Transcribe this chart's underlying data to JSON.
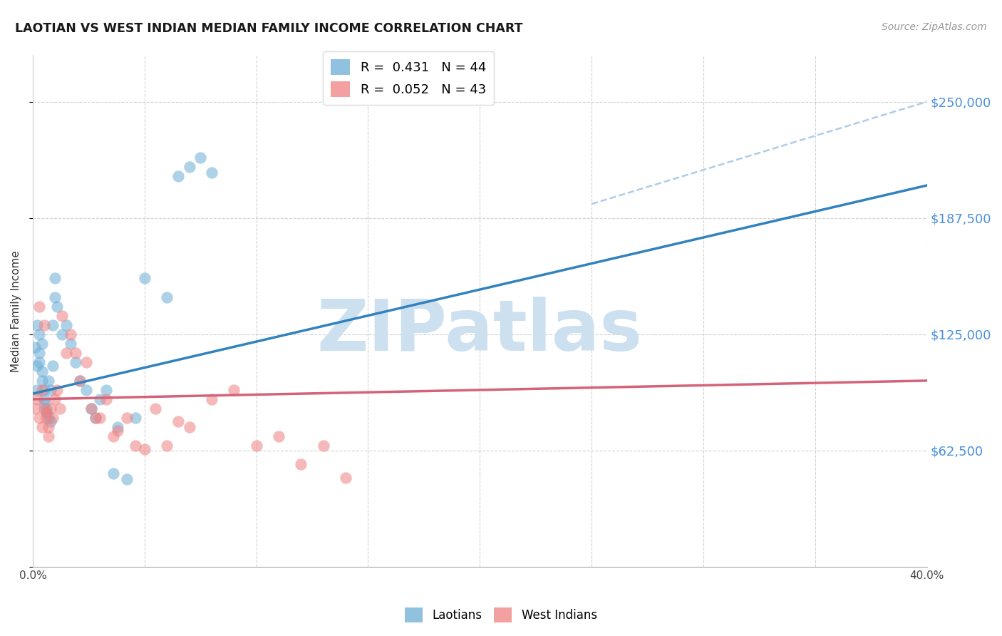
{
  "title": "LAOTIAN VS WEST INDIAN MEDIAN FAMILY INCOME CORRELATION CHART",
  "source": "Source: ZipAtlas.com",
  "ylabel": "Median Family Income",
  "yticks": [
    0,
    62500,
    125000,
    187500,
    250000
  ],
  "ytick_labels": [
    "",
    "$62,500",
    "$125,000",
    "$187,500",
    "$250,000"
  ],
  "xmin": 0.0,
  "xmax": 0.4,
  "ymin": 0,
  "ymax": 275000,
  "laotian_color": "#6baed6",
  "west_indian_color": "#f08080",
  "trend_laotian_color": "#3182bd",
  "trend_west_indian_color": "#d4637a",
  "dashed_line_color": "#b0cce8",
  "ytick_color": "#4a90d9",
  "background_color": "#ffffff",
  "grid_color": "#cccccc",
  "legend_label_laotian": "R =  0.431   N = 44",
  "legend_label_west_indian": "R =  0.052   N = 43",
  "laotian_x": [
    0.001,
    0.002,
    0.002,
    0.002,
    0.003,
    0.003,
    0.003,
    0.004,
    0.004,
    0.004,
    0.005,
    0.005,
    0.005,
    0.006,
    0.006,
    0.007,
    0.007,
    0.008,
    0.008,
    0.009,
    0.009,
    0.01,
    0.01,
    0.011,
    0.013,
    0.015,
    0.017,
    0.019,
    0.021,
    0.024,
    0.026,
    0.028,
    0.03,
    0.033,
    0.036,
    0.038,
    0.042,
    0.046,
    0.05,
    0.06,
    0.065,
    0.07,
    0.075,
    0.08
  ],
  "laotian_y": [
    118000,
    130000,
    108000,
    95000,
    115000,
    110000,
    125000,
    120000,
    105000,
    100000,
    95000,
    90000,
    88000,
    85000,
    83000,
    80000,
    100000,
    78000,
    95000,
    108000,
    130000,
    145000,
    155000,
    140000,
    125000,
    130000,
    120000,
    110000,
    100000,
    95000,
    85000,
    80000,
    90000,
    95000,
    50000,
    75000,
    47000,
    80000,
    155000,
    145000,
    210000,
    215000,
    220000,
    212000
  ],
  "west_indian_x": [
    0.001,
    0.002,
    0.003,
    0.003,
    0.004,
    0.004,
    0.005,
    0.005,
    0.006,
    0.006,
    0.007,
    0.007,
    0.008,
    0.009,
    0.01,
    0.011,
    0.012,
    0.013,
    0.015,
    0.017,
    0.019,
    0.021,
    0.024,
    0.026,
    0.028,
    0.03,
    0.033,
    0.036,
    0.038,
    0.042,
    0.046,
    0.05,
    0.055,
    0.06,
    0.065,
    0.07,
    0.08,
    0.09,
    0.1,
    0.11,
    0.12,
    0.13,
    0.14
  ],
  "west_indian_y": [
    85000,
    90000,
    80000,
    140000,
    95000,
    75000,
    85000,
    130000,
    83000,
    80000,
    75000,
    70000,
    85000,
    80000,
    90000,
    95000,
    85000,
    135000,
    115000,
    125000,
    115000,
    100000,
    110000,
    85000,
    80000,
    80000,
    90000,
    70000,
    73000,
    80000,
    65000,
    63000,
    85000,
    65000,
    78000,
    75000,
    90000,
    95000,
    65000,
    70000,
    55000,
    65000,
    48000
  ],
  "laotian_trend_x0": 0.0,
  "laotian_trend_y0": 93000,
  "laotian_trend_x1": 0.4,
  "laotian_trend_y1": 205000,
  "west_indian_trend_x0": 0.0,
  "west_indian_trend_y0": 90000,
  "west_indian_trend_x1": 0.4,
  "west_indian_trend_y1": 100000,
  "dashed_trend_x0": 0.25,
  "dashed_trend_y0": 195000,
  "dashed_trend_x1": 0.4,
  "dashed_trend_y1": 250000,
  "watermark_text": "ZIPatlas",
  "watermark_color": "#cce0f0",
  "watermark_fontsize": 72
}
